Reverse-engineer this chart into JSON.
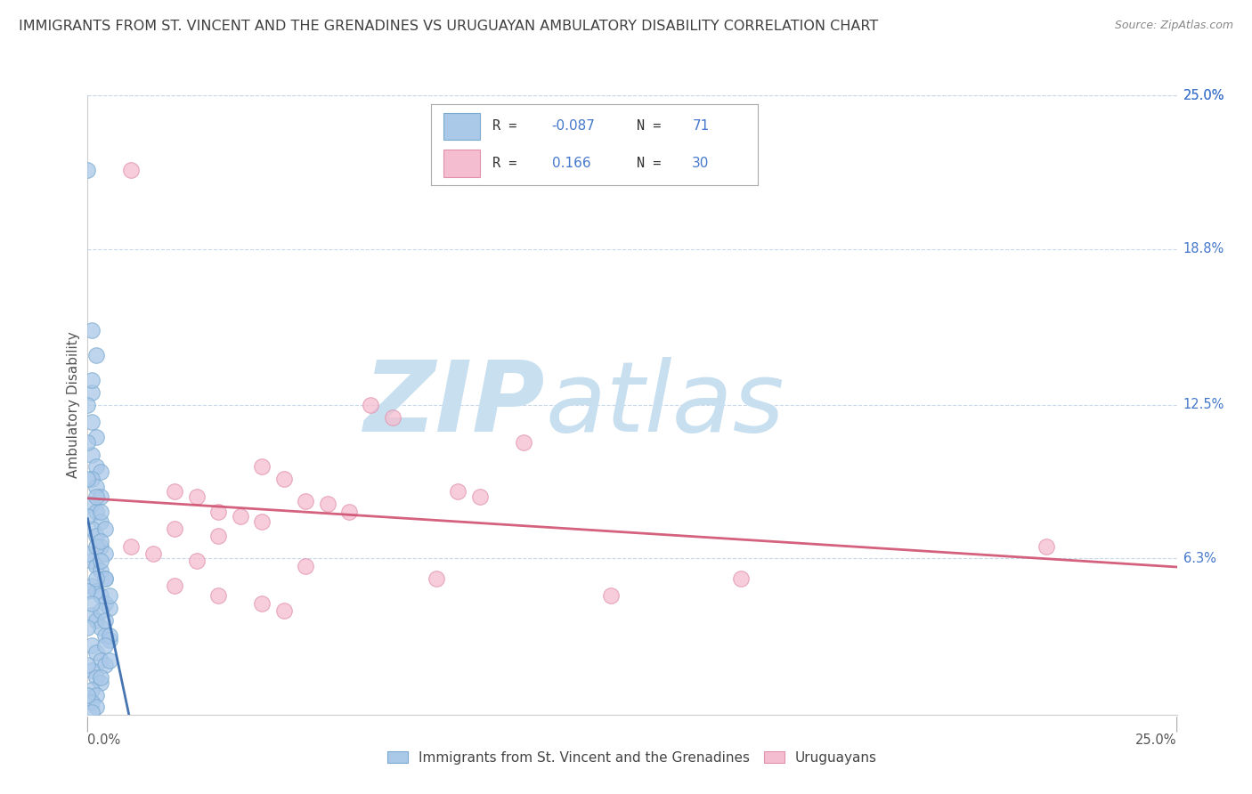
{
  "title": "IMMIGRANTS FROM ST. VINCENT AND THE GRENADINES VS URUGUAYAN AMBULATORY DISABILITY CORRELATION CHART",
  "source": "Source: ZipAtlas.com",
  "ylabel": "Ambulatory Disability",
  "xmin": 0.0,
  "xmax": 0.25,
  "ymin": 0.0,
  "ymax": 0.25,
  "yticks": [
    0.063,
    0.125,
    0.188,
    0.25
  ],
  "ytick_labels": [
    "6.3%",
    "12.5%",
    "18.8%",
    "25.0%"
  ],
  "series1_label": "Immigrants from St. Vincent and the Grenadines",
  "series1_R": -0.087,
  "series1_N": 71,
  "series1_color": "#aac8e8",
  "series1_edge_color": "#7aaad0",
  "series2_label": "Uruguayans",
  "series2_R": 0.166,
  "series2_N": 30,
  "series2_color": "#f5bdd0",
  "series2_edge_color": "#e090a8",
  "trend1_color": "#3366aa",
  "trend2_color": "#d05070",
  "watermark_zip": "ZIP",
  "watermark_atlas": "atlas",
  "watermark_color_zip": "#c8dff0",
  "watermark_color_atlas": "#c8dff0",
  "background_color": "#ffffff",
  "grid_color": "#c8d8e8",
  "title_color": "#404040",
  "axis_label_color": "#4477cc",
  "legend_text_color": "#333333",
  "blue_points": [
    [
      0.001,
      0.13
    ],
    [
      0.0,
      0.22
    ],
    [
      0.0,
      0.125
    ],
    [
      0.001,
      0.118
    ],
    [
      0.002,
      0.112
    ],
    [
      0.001,
      0.105
    ],
    [
      0.002,
      0.1
    ],
    [
      0.003,
      0.098
    ],
    [
      0.001,
      0.095
    ],
    [
      0.002,
      0.092
    ],
    [
      0.003,
      0.088
    ],
    [
      0.001,
      0.085
    ],
    [
      0.002,
      0.082
    ],
    [
      0.003,
      0.078
    ],
    [
      0.001,
      0.075
    ],
    [
      0.002,
      0.072
    ],
    [
      0.003,
      0.068
    ],
    [
      0.004,
      0.065
    ],
    [
      0.001,
      0.062
    ],
    [
      0.002,
      0.06
    ],
    [
      0.003,
      0.058
    ],
    [
      0.004,
      0.055
    ],
    [
      0.001,
      0.052
    ],
    [
      0.002,
      0.05
    ],
    [
      0.003,
      0.048
    ],
    [
      0.004,
      0.045
    ],
    [
      0.005,
      0.043
    ],
    [
      0.001,
      0.04
    ],
    [
      0.002,
      0.038
    ],
    [
      0.003,
      0.035
    ],
    [
      0.004,
      0.032
    ],
    [
      0.005,
      0.03
    ],
    [
      0.001,
      0.028
    ],
    [
      0.002,
      0.025
    ],
    [
      0.003,
      0.022
    ],
    [
      0.004,
      0.02
    ],
    [
      0.001,
      0.018
    ],
    [
      0.002,
      0.015
    ],
    [
      0.003,
      0.013
    ],
    [
      0.001,
      0.01
    ],
    [
      0.002,
      0.008
    ],
    [
      0.001,
      0.005
    ],
    [
      0.002,
      0.003
    ],
    [
      0.001,
      0.001
    ],
    [
      0.0,
      0.11
    ],
    [
      0.0,
      0.095
    ],
    [
      0.0,
      0.08
    ],
    [
      0.0,
      0.065
    ],
    [
      0.0,
      0.05
    ],
    [
      0.0,
      0.035
    ],
    [
      0.0,
      0.02
    ],
    [
      0.0,
      0.008
    ],
    [
      0.002,
      0.088
    ],
    [
      0.003,
      0.082
    ],
    [
      0.004,
      0.075
    ],
    [
      0.002,
      0.068
    ],
    [
      0.003,
      0.062
    ],
    [
      0.004,
      0.055
    ],
    [
      0.005,
      0.048
    ],
    [
      0.003,
      0.042
    ],
    [
      0.004,
      0.038
    ],
    [
      0.005,
      0.032
    ],
    [
      0.004,
      0.028
    ],
    [
      0.005,
      0.022
    ],
    [
      0.001,
      0.155
    ],
    [
      0.002,
      0.145
    ],
    [
      0.001,
      0.135
    ],
    [
      0.003,
      0.07
    ],
    [
      0.002,
      0.055
    ],
    [
      0.001,
      0.045
    ],
    [
      0.003,
      0.015
    ]
  ],
  "pink_points": [
    [
      0.01,
      0.22
    ],
    [
      0.065,
      0.125
    ],
    [
      0.07,
      0.12
    ],
    [
      0.1,
      0.11
    ],
    [
      0.04,
      0.1
    ],
    [
      0.045,
      0.095
    ],
    [
      0.02,
      0.09
    ],
    [
      0.025,
      0.088
    ],
    [
      0.05,
      0.086
    ],
    [
      0.03,
      0.082
    ],
    [
      0.06,
      0.082
    ],
    [
      0.055,
      0.085
    ],
    [
      0.085,
      0.09
    ],
    [
      0.09,
      0.088
    ],
    [
      0.035,
      0.08
    ],
    [
      0.04,
      0.078
    ],
    [
      0.02,
      0.075
    ],
    [
      0.03,
      0.072
    ],
    [
      0.01,
      0.068
    ],
    [
      0.015,
      0.065
    ],
    [
      0.025,
      0.062
    ],
    [
      0.05,
      0.06
    ],
    [
      0.08,
      0.055
    ],
    [
      0.02,
      0.052
    ],
    [
      0.03,
      0.048
    ],
    [
      0.04,
      0.045
    ],
    [
      0.045,
      0.042
    ],
    [
      0.22,
      0.068
    ],
    [
      0.15,
      0.055
    ],
    [
      0.12,
      0.048
    ]
  ]
}
